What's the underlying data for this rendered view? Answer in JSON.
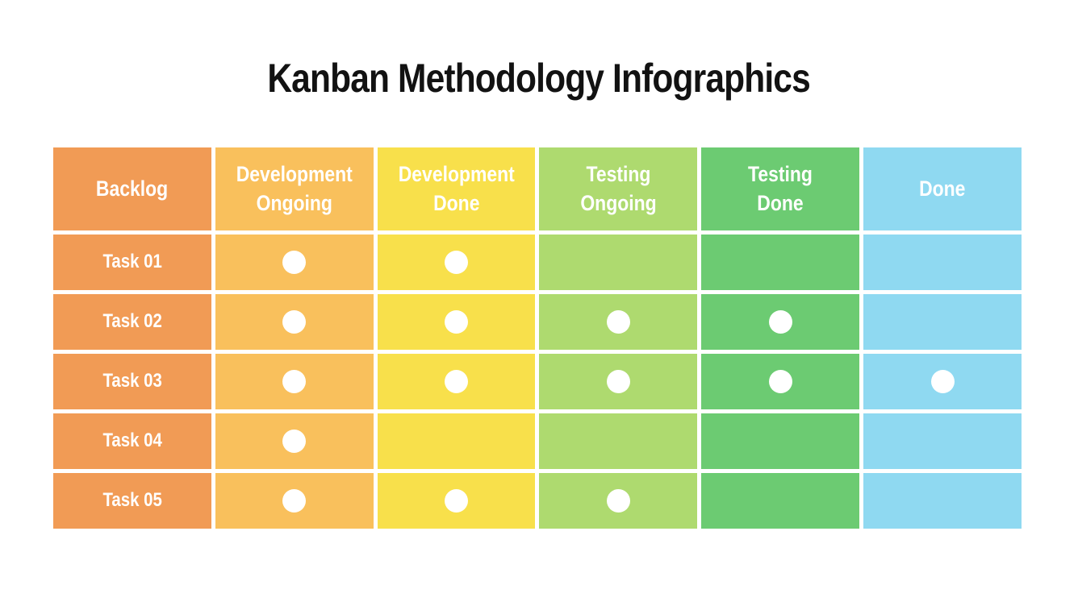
{
  "title": "Kanban Methodology Infographics",
  "colors": {
    "background": "#FFFFFF",
    "title_text": "#121212",
    "cell_text": "#FFFFFF",
    "dot": "#FFFFFF",
    "gap": "#FFFFFF"
  },
  "chart_data": {
    "type": "table",
    "title": "Kanban Methodology Infographics",
    "columns": [
      {
        "label": "Backlog",
        "color": "#F19B55"
      },
      {
        "label": "Development\nOngoing",
        "color": "#F9C05C"
      },
      {
        "label": "Development\nDone",
        "color": "#F8E04B"
      },
      {
        "label": "Testing\nOngoing",
        "color": "#AEDA6F"
      },
      {
        "label": "Testing\nDone",
        "color": "#6CCB72"
      },
      {
        "label": "Done",
        "color": "#8FD9F1"
      }
    ],
    "rows": [
      {
        "label": "Task 01",
        "marks": [
          1,
          1,
          0,
          0,
          0
        ]
      },
      {
        "label": "Task 02",
        "marks": [
          1,
          1,
          1,
          1,
          0
        ]
      },
      {
        "label": "Task 03",
        "marks": [
          1,
          1,
          1,
          1,
          1
        ]
      },
      {
        "label": "Task 04",
        "marks": [
          1,
          0,
          0,
          0,
          0
        ]
      },
      {
        "label": "Task 05",
        "marks": [
          1,
          1,
          1,
          0,
          0
        ]
      }
    ],
    "mark_glyph": "white-dot",
    "legend": null,
    "grid": "white gaps between colored cells"
  }
}
